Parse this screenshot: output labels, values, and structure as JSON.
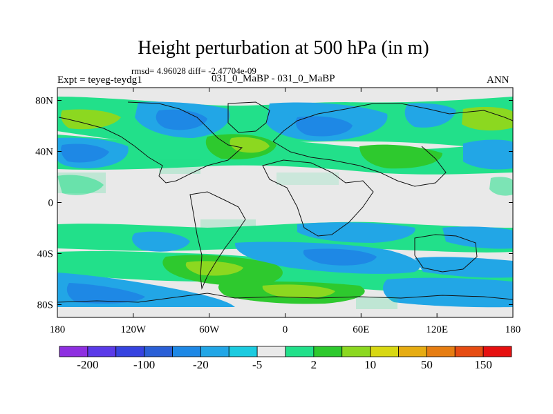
{
  "title": "Height perturbation at 500 hPa (in m)",
  "stats_text": "rmsd= 4.96028 diff= -2.47704e-09",
  "expt_label": "Expt = teyeg-teydg1",
  "case_label": "031_0_MaBP - 031_0_MaBP",
  "season_label": "ANN",
  "lat_ticks": [
    {
      "lat": 80,
      "label": "80N"
    },
    {
      "lat": 40,
      "label": "40N"
    },
    {
      "lat": 0,
      "label": "0"
    },
    {
      "lat": -40,
      "label": "40S"
    },
    {
      "lat": -80,
      "label": "80S"
    }
  ],
  "lon_ticks": [
    {
      "lon": -180,
      "label": "180"
    },
    {
      "lon": -120,
      "label": "120W"
    },
    {
      "lon": -60,
      "label": "60W"
    },
    {
      "lon": 0,
      "label": "0"
    },
    {
      "lon": 60,
      "label": "60E"
    },
    {
      "lon": 120,
      "label": "120E"
    },
    {
      "lon": 180,
      "label": "180"
    }
  ],
  "colorbar": {
    "colors": [
      "#8e2fe0",
      "#5a3ae8",
      "#3643e0",
      "#2a5fd6",
      "#1e88e5",
      "#22a6e6",
      "#1ccbe0",
      "#e9e9e9",
      "#22e08a",
      "#2ec92e",
      "#8cd820",
      "#d8d812",
      "#e6ac12",
      "#e67d12",
      "#e64c12",
      "#e61010"
    ],
    "labels": [
      {
        "after_index": 0,
        "text": "-200"
      },
      {
        "after_index": 2,
        "text": "-100"
      },
      {
        "after_index": 4,
        "text": "-20"
      },
      {
        "after_index": 6,
        "text": "-5"
      },
      {
        "after_index": 8,
        "text": "2"
      },
      {
        "after_index": 10,
        "text": "10"
      },
      {
        "after_index": 12,
        "text": "50"
      },
      {
        "after_index": 14,
        "text": "150"
      }
    ]
  },
  "chart_data": {
    "type": "heatmap",
    "title": "Height perturbation at 500 hPa (in m)",
    "variable": "500 hPa height perturbation",
    "units": "m",
    "xlim": [
      -180,
      180
    ],
    "ylim": [
      -90,
      90
    ],
    "zonal_bands": [
      {
        "lat": 67,
        "description": "northern high-latitude band, negative (blue) lobes near 150W-120W and 30E, positive (green) lobes near 160W and 150E"
      },
      {
        "lat": 42,
        "description": "northern mid-latitude band, negative lobes near 170W and 160E, positive near 30W-0 and 60E"
      },
      {
        "lat": -27,
        "description": "southern subtropical band, weak negative lobes"
      },
      {
        "lat": -50,
        "description": "southern mid-latitude band, negative near 30E-90E, positive near 60W"
      },
      {
        "lat": -75,
        "description": "southern high-latitude band, negative near 150W and 120E, positive near 0"
      }
    ]
  }
}
